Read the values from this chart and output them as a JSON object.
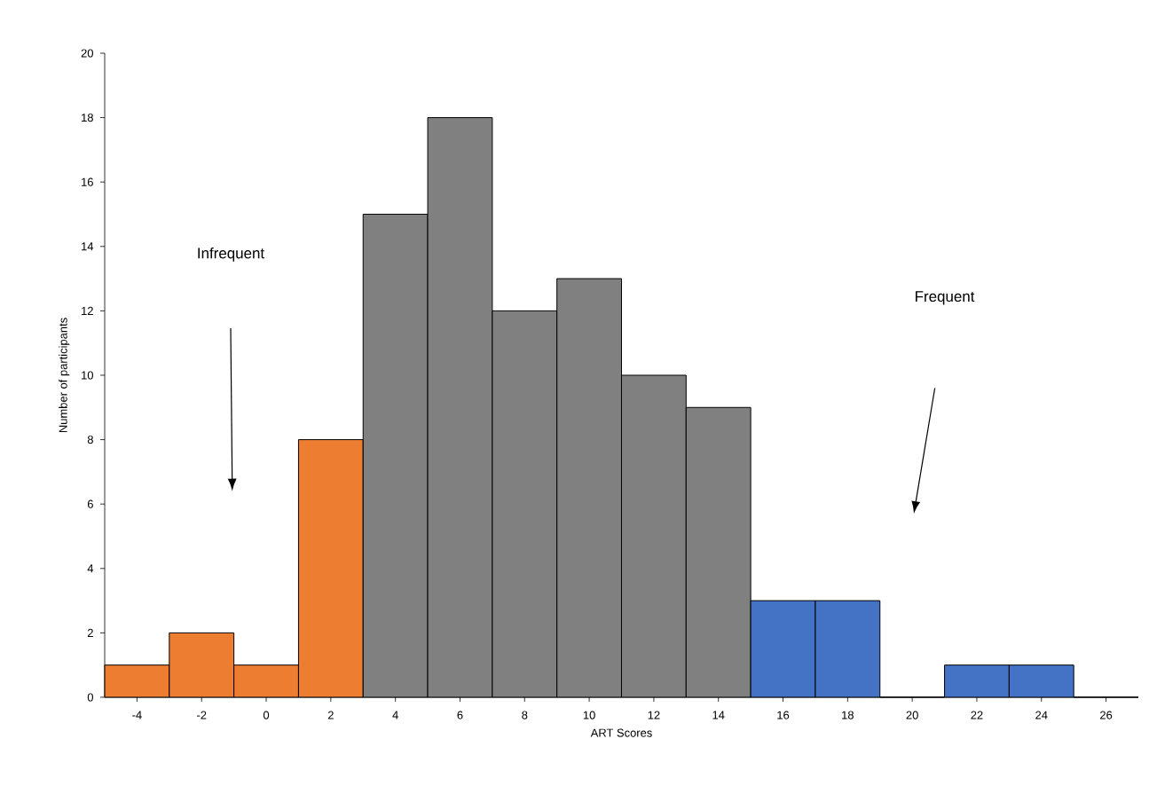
{
  "chart_data": {
    "type": "histogram",
    "xlabel": "ART Scores",
    "ylabel": "Number of participants",
    "bins": [
      -5,
      -3,
      -1,
      1,
      3,
      5,
      7,
      9,
      11,
      13,
      15,
      17,
      19,
      21,
      23,
      25,
      27
    ],
    "values": [
      1,
      2,
      1,
      8,
      15,
      18,
      12,
      13,
      10,
      9,
      3,
      3,
      0,
      1,
      1,
      0
    ],
    "colors": [
      "#ed7d31",
      "#ed7d31",
      "#ed7d31",
      "#ed7d31",
      "#808080",
      "#808080",
      "#808080",
      "#808080",
      "#808080",
      "#808080",
      "#4472c4",
      "#4472c4",
      "#4472c4",
      "#4472c4",
      "#4472c4",
      "#4472c4"
    ],
    "xlim": [
      -5,
      27
    ],
    "xticks": [
      -4,
      -2,
      0,
      2,
      4,
      6,
      8,
      10,
      12,
      14,
      16,
      18,
      20,
      22,
      24,
      26
    ],
    "ylim": [
      0,
      20
    ],
    "yticks": [
      0,
      2,
      4,
      6,
      8,
      10,
      12,
      14,
      16,
      18,
      20
    ],
    "annotations": [
      "Infrequent",
      "Frequent"
    ]
  }
}
